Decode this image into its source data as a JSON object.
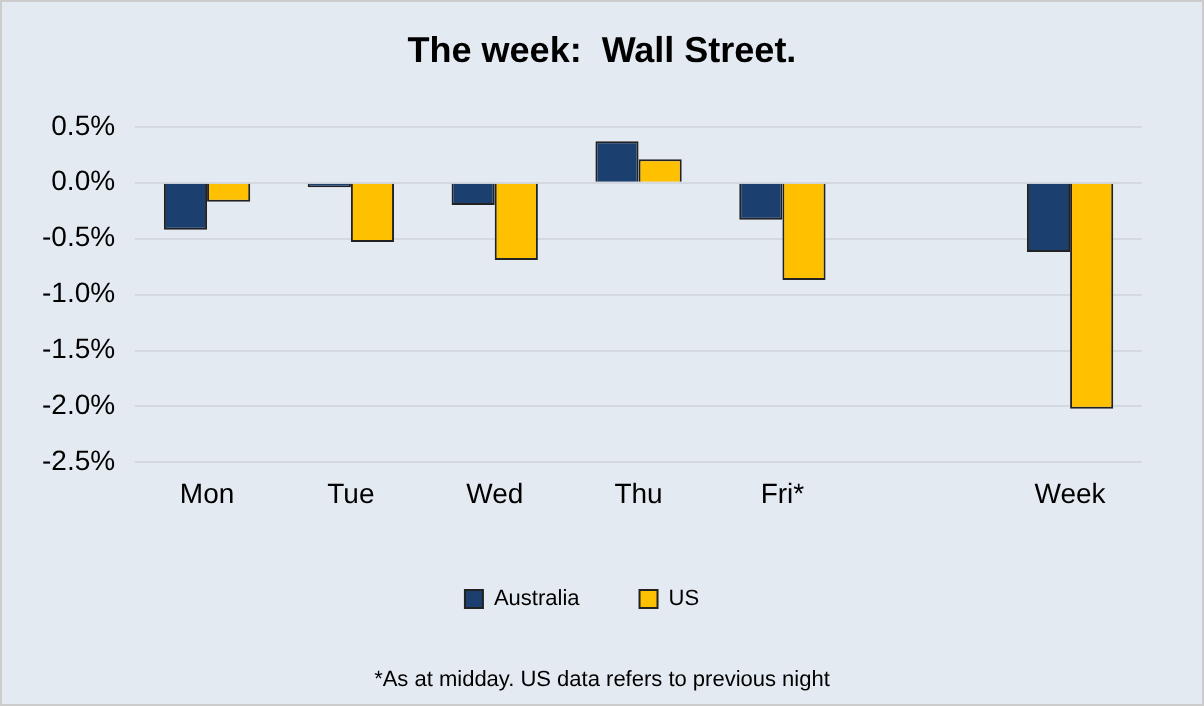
{
  "chart_data": {
    "type": "bar",
    "title": "The week:  Wall Street.",
    "categories": [
      "Mon",
      "Tue",
      "Wed",
      "Thu",
      "Fri*",
      null,
      "Week"
    ],
    "series": [
      {
        "name": "Australia",
        "color": "#1b3f6e",
        "values": [
          -0.42,
          -0.04,
          -0.2,
          0.37,
          -0.33,
          null,
          -0.62
        ]
      },
      {
        "name": "US",
        "color": "#ffc000",
        "values": [
          -0.17,
          -0.53,
          -0.69,
          0.21,
          -0.87,
          null,
          -2.02
        ]
      }
    ],
    "ylim": [
      -2.5,
      0.5
    ],
    "yticks": [
      {
        "value": 0.5,
        "label": "0.5%"
      },
      {
        "value": 0,
        "label": "0.0%"
      },
      {
        "value": -0.5,
        "label": "-0.5%"
      },
      {
        "value": -1,
        "label": "-1.0%"
      },
      {
        "value": -1.5,
        "label": "-1.5%"
      },
      {
        "value": -2,
        "label": "-2.0%"
      },
      {
        "value": -2.5,
        "label": "-2.5%"
      }
    ],
    "grid": "y",
    "legend": "bottom",
    "annotations": [
      "*As at midday. US data refers to previous night"
    ]
  }
}
